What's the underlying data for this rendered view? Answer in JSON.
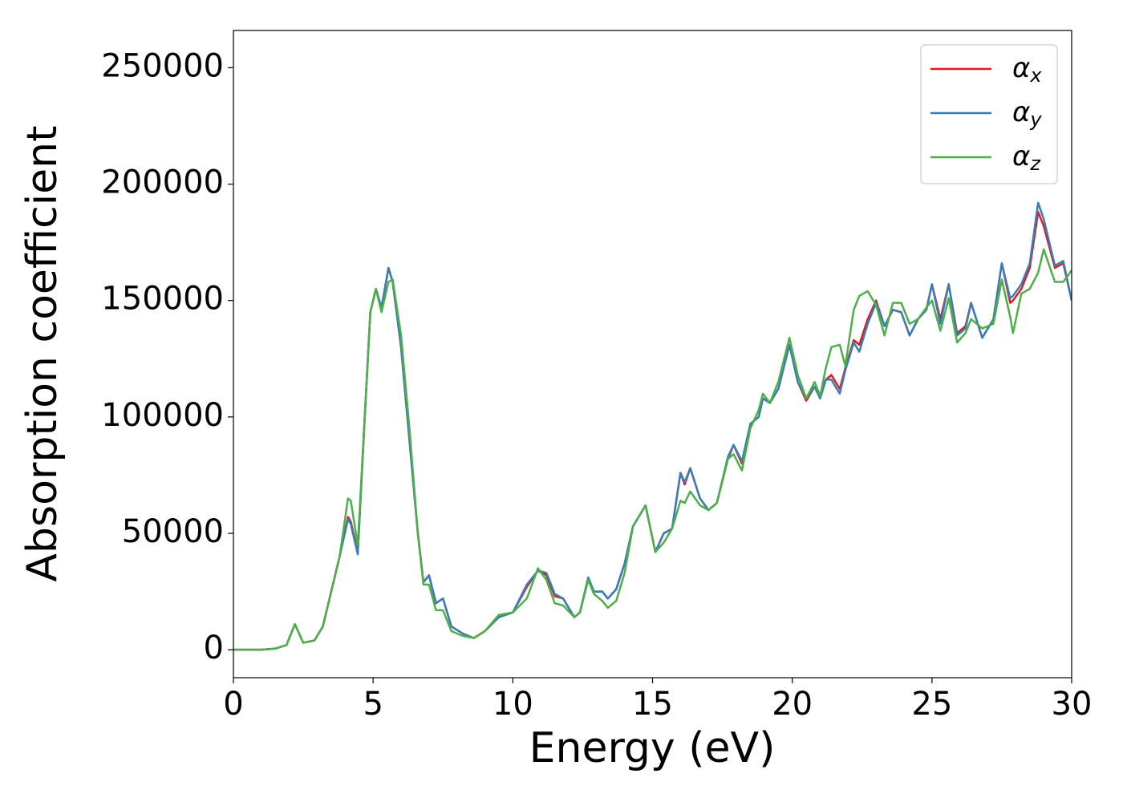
{
  "chart_data": {
    "type": "line",
    "xlabel": "Energy (eV)",
    "ylabel": "Absorption coefficient",
    "xlim": [
      0,
      30
    ],
    "ylim": [
      -12000,
      266000
    ],
    "xticks": [
      0,
      5,
      10,
      15,
      20,
      25,
      30
    ],
    "yticks": [
      0,
      50000,
      100000,
      150000,
      200000,
      250000
    ],
    "legend": "upper right",
    "x": [
      0,
      1,
      1.5,
      1.9,
      2.2,
      2.5,
      2.9,
      3.2,
      3.5,
      3.8,
      4.1,
      4.2,
      4.45,
      4.7,
      4.9,
      5.1,
      5.3,
      5.55,
      5.7,
      6.0,
      6.3,
      6.6,
      6.8,
      7.0,
      7.25,
      7.5,
      7.8,
      8.2,
      8.6,
      9.0,
      9.5,
      10.0,
      10.5,
      10.9,
      11.2,
      11.5,
      11.8,
      12.2,
      12.4,
      12.7,
      12.9,
      13.2,
      13.4,
      13.7,
      14.0,
      14.3,
      14.75,
      15.1,
      15.4,
      15.7,
      16.0,
      16.15,
      16.35,
      16.7,
      17.0,
      17.3,
      17.7,
      17.9,
      18.2,
      18.5,
      18.8,
      18.95,
      19.2,
      19.5,
      19.9,
      20.2,
      20.5,
      20.8,
      21.0,
      21.2,
      21.4,
      21.7,
      21.9,
      22.2,
      22.4,
      22.7,
      23.0,
      23.3,
      23.6,
      23.9,
      24.2,
      24.5,
      24.8,
      25.0,
      25.3,
      25.6,
      25.9,
      26.2,
      26.4,
      26.8,
      27.2,
      27.5,
      27.8,
      27.9,
      28.2,
      28.5,
      28.8,
      29.0,
      29.4,
      29.7,
      30.0
    ],
    "series": [
      {
        "name": "αx",
        "color": "#e41a1c",
        "values": [
          0,
          0,
          500,
          2000,
          11000,
          3000,
          4000,
          10000,
          25000,
          40000,
          57000,
          55000,
          42000,
          100000,
          145000,
          155000,
          147000,
          164000,
          158000,
          130000,
          90000,
          50000,
          29000,
          32000,
          20000,
          22000,
          10000,
          7000,
          5000,
          8000,
          14000,
          16000,
          27000,
          34000,
          32000,
          23000,
          22000,
          14000,
          16000,
          31000,
          25000,
          25000,
          22000,
          26000,
          37000,
          53000,
          62000,
          42000,
          50000,
          52000,
          76000,
          71000,
          78000,
          65000,
          60000,
          63000,
          82000,
          88000,
          80000,
          97000,
          100000,
          108000,
          106000,
          112000,
          131000,
          115000,
          107000,
          113000,
          108000,
          116000,
          118000,
          112000,
          121000,
          133000,
          131000,
          142000,
          150000,
          139000,
          146000,
          145000,
          135000,
          142000,
          146000,
          157000,
          142000,
          157000,
          136000,
          139000,
          149000,
          134000,
          142000,
          166000,
          149000,
          150000,
          155000,
          164000,
          188000,
          182000,
          164000,
          166000,
          150000
        ]
      },
      {
        "name": "αy",
        "color": "#377eb8",
        "values": [
          0,
          0,
          500,
          2000,
          11000,
          3000,
          4000,
          10000,
          25000,
          40000,
          56000,
          54000,
          41000,
          100000,
          145000,
          155000,
          147000,
          164000,
          158000,
          130000,
          90000,
          50000,
          29000,
          32000,
          20000,
          22000,
          10000,
          7000,
          5000,
          8000,
          14000,
          16000,
          28000,
          34000,
          33000,
          24000,
          22000,
          14000,
          16000,
          31000,
          25000,
          25000,
          22000,
          26000,
          37000,
          53000,
          62000,
          42000,
          50000,
          52000,
          76000,
          72000,
          78000,
          65000,
          60000,
          63000,
          83000,
          88000,
          81000,
          97000,
          100000,
          108000,
          106000,
          112000,
          131000,
          115000,
          108000,
          113000,
          108000,
          116000,
          116000,
          110000,
          120000,
          132000,
          128000,
          140000,
          149000,
          139000,
          146000,
          145000,
          135000,
          142000,
          146000,
          157000,
          140000,
          157000,
          135000,
          138000,
          149000,
          134000,
          142000,
          166000,
          151000,
          152000,
          157000,
          166000,
          192000,
          185000,
          165000,
          167000,
          150000
        ]
      },
      {
        "name": "αz",
        "color": "#4daf4a",
        "values": [
          0,
          0,
          500,
          2000,
          11000,
          3000,
          4000,
          10000,
          25000,
          40000,
          65000,
          64000,
          45000,
          100000,
          145000,
          155000,
          145000,
          158000,
          159000,
          135000,
          95000,
          50000,
          28000,
          28000,
          17000,
          17000,
          8000,
          6000,
          5000,
          8000,
          15000,
          16000,
          22000,
          35000,
          30000,
          20000,
          19000,
          14000,
          16000,
          30000,
          24000,
          21000,
          18000,
          21000,
          33000,
          53000,
          62000,
          42000,
          46000,
          52000,
          64000,
          63000,
          68000,
          62000,
          60000,
          63000,
          82000,
          84000,
          77000,
          95000,
          103000,
          110000,
          106000,
          115000,
          134000,
          118000,
          108000,
          115000,
          109000,
          121000,
          130000,
          131000,
          122000,
          146000,
          152000,
          154000,
          148000,
          135000,
          149000,
          149000,
          140000,
          142000,
          147000,
          150000,
          137000,
          151000,
          132000,
          136000,
          142000,
          138000,
          140000,
          159000,
          143000,
          136000,
          153000,
          155000,
          162000,
          172000,
          158000,
          158000,
          163000
        ]
      }
    ]
  }
}
